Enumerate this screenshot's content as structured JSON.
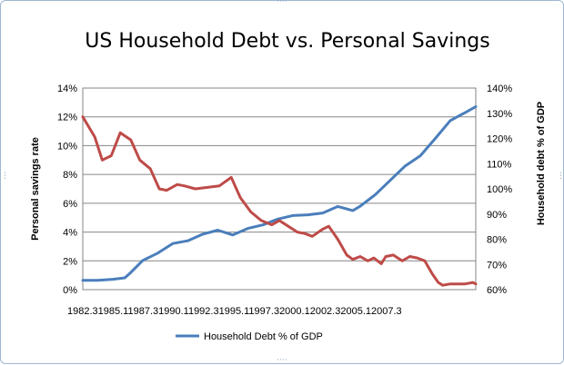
{
  "chart_data": {
    "type": "line",
    "title": "US Household Debt vs. Personal Savings",
    "ylabel_left": "Personal savings  rate",
    "ylabel_right": "Household debt % of GDP",
    "x_tick_text": "1982.31985.11987.31990.11992.31995.11997.32000.12002.32005.12007.3",
    "x_range": [
      1982.0,
      2008.2
    ],
    "yleft_ticks": [
      "0%",
      "2%",
      "4%",
      "6%",
      "8%",
      "10%",
      "12%",
      "14%"
    ],
    "yleft_range": [
      0,
      14
    ],
    "yright_ticks": [
      "60%",
      "70%",
      "80%",
      "90%",
      "100%",
      "110%",
      "120%",
      "130%",
      "140%"
    ],
    "yright_range": [
      60,
      140
    ],
    "grid": true,
    "legend_placement": "bottom",
    "series": [
      {
        "name": "Household Debt % of GDP",
        "axis": "right",
        "color": "#4a7ebb",
        "x": [
          1982.0,
          1983.0,
          1984.0,
          1984.8,
          1985.2,
          1986.0,
          1987.0,
          1988.0,
          1989.0,
          1990.0,
          1991.0,
          1992.0,
          1993.0,
          1994.0,
          1995.0,
          1996.0,
          1997.0,
          1998.0,
          1999.0,
          2000.0,
          2000.5,
          2001.5,
          2002.5,
          2003.5,
          2004.5,
          2005.5,
          2006.5,
          2007.5,
          2008.2
        ],
        "y": [
          63.7,
          63.7,
          64.1,
          64.7,
          66.8,
          71.6,
          74.5,
          78.3,
          79.4,
          82.0,
          83.6,
          81.7,
          84.3,
          85.7,
          88.0,
          89.4,
          89.7,
          90.4,
          93.0,
          91.4,
          93.1,
          97.7,
          103.4,
          109.1,
          113.1,
          120.0,
          127.1,
          130.3,
          132.6
        ]
      },
      {
        "name": "Personal savings rate",
        "axis": "left",
        "color": "#be4b48",
        "x": [
          1982.0,
          1982.8,
          1983.3,
          1983.9,
          1984.5,
          1985.2,
          1985.8,
          1986.5,
          1987.1,
          1987.6,
          1988.3,
          1988.8,
          1989.5,
          1990.3,
          1991.1,
          1991.9,
          1992.5,
          1993.2,
          1993.9,
          1994.6,
          1995.1,
          1995.7,
          1996.3,
          1996.8,
          1997.3,
          1998.0,
          1998.4,
          1999.0,
          1999.6,
          2000.0,
          2000.5,
          2001.0,
          2001.4,
          2001.9,
          2002.2,
          2002.7,
          2003.0,
          2003.3,
          2003.8,
          2004.3,
          2004.8,
          2005.3,
          2005.7,
          2006.0,
          2006.5,
          2007.0,
          2007.5,
          2008.0,
          2008.2
        ],
        "y": [
          12.0,
          10.6,
          9.0,
          9.3,
          10.9,
          10.4,
          9.0,
          8.4,
          7.0,
          6.9,
          7.3,
          7.2,
          7.0,
          7.1,
          7.2,
          7.8,
          6.4,
          5.4,
          4.8,
          4.5,
          4.8,
          4.4,
          4.0,
          3.9,
          3.7,
          4.2,
          4.4,
          3.5,
          2.4,
          2.1,
          2.3,
          2.0,
          2.2,
          1.8,
          2.3,
          2.4,
          2.2,
          2.0,
          2.3,
          2.2,
          2.0,
          1.1,
          0.5,
          0.3,
          0.4,
          0.4,
          0.4,
          0.5,
          0.4
        ]
      }
    ]
  }
}
